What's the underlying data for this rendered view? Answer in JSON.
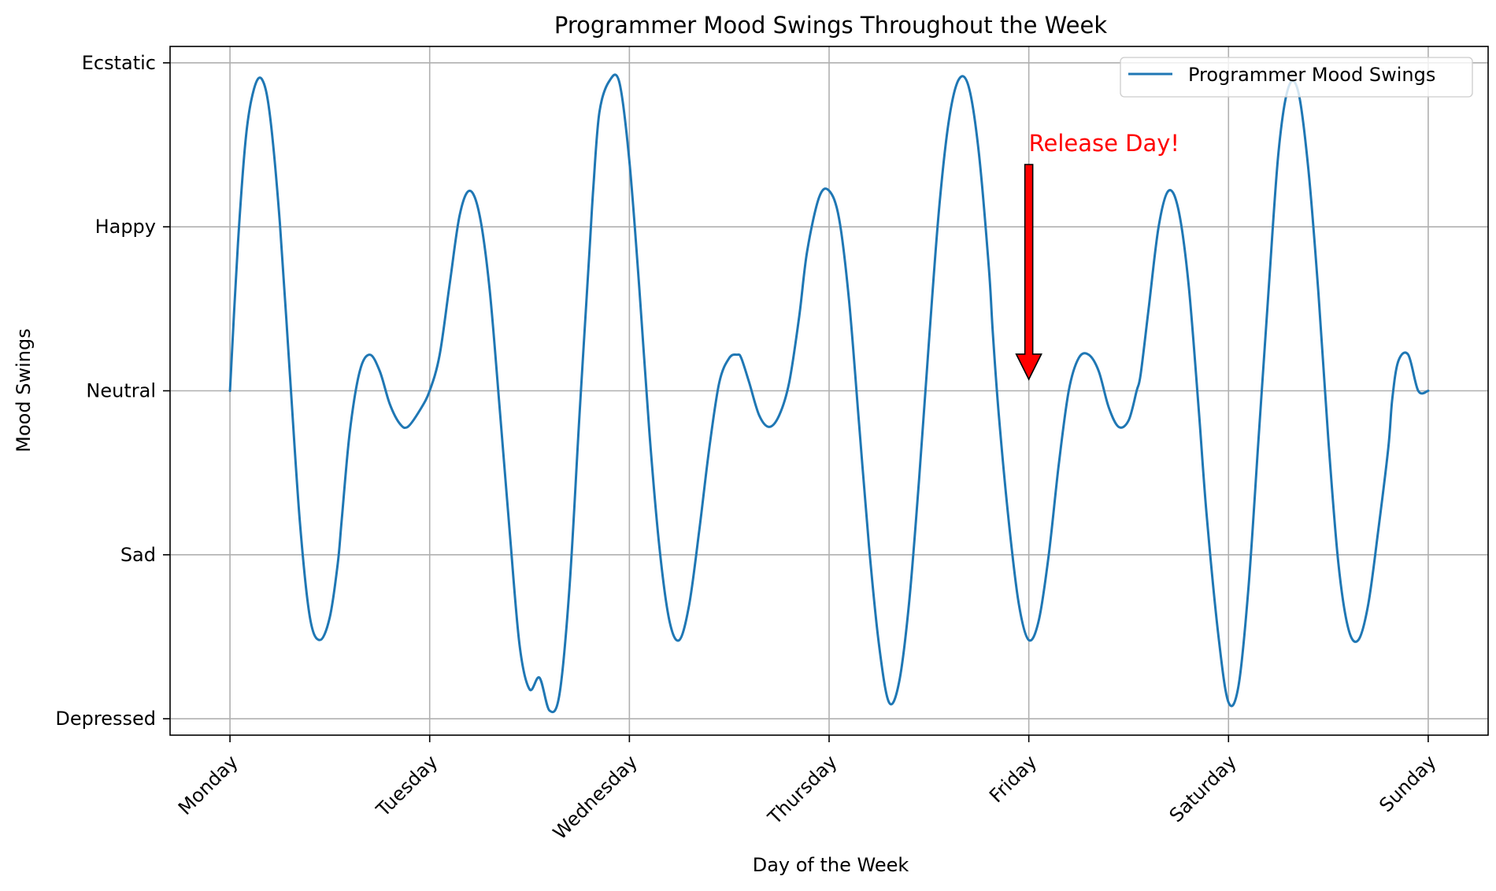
{
  "chart_data": {
    "type": "line",
    "title": "Programmer Mood Swings Throughout the Week",
    "xlabel": "Day of the Week",
    "ylabel": "Mood Swings",
    "x_tick_labels": [
      "Monday",
      "Tuesday",
      "Wednesday",
      "Thursday",
      "Friday",
      "Saturday",
      "Sunday"
    ],
    "x_ticks": [
      0,
      1,
      2,
      3,
      4,
      5,
      6
    ],
    "y_tick_labels": [
      "Depressed",
      "Sad",
      "Neutral",
      "Happy",
      "Ecstatic"
    ],
    "y_ticks": [
      -2,
      -1,
      0,
      1,
      2
    ],
    "xlim": [
      -0.3,
      6.3
    ],
    "ylim": [
      -2.1,
      2.1
    ],
    "grid": true,
    "legend_position": "top-right",
    "series": [
      {
        "name": "Programmer Mood Swings",
        "color": "#1f77b4",
        "x": [
          0,
          0.04,
          0.08,
          0.12,
          0.16,
          0.2,
          0.25,
          0.3,
          0.35,
          0.4,
          0.45,
          0.5,
          0.54,
          0.56,
          0.6,
          0.65,
          0.7,
          0.75,
          0.8,
          0.85,
          0.89,
          0.95,
          1.0,
          1.05,
          1.1,
          1.15,
          1.2,
          1.25,
          1.3,
          1.35,
          1.4,
          1.45,
          1.5,
          1.55,
          1.6,
          1.65,
          1.7,
          1.75,
          1.8,
          1.82,
          1.85,
          1.9,
          1.95,
          2.0,
          2.05,
          2.1,
          2.15,
          2.2,
          2.25,
          2.3,
          2.35,
          2.4,
          2.45,
          2.5,
          2.54,
          2.56,
          2.6,
          2.65,
          2.7,
          2.75,
          2.8,
          2.85,
          2.89,
          2.95,
          3.0,
          3.05,
          3.1,
          3.15,
          3.2,
          3.25,
          3.3,
          3.35,
          3.4,
          3.45,
          3.5,
          3.55,
          3.6,
          3.65,
          3.7,
          3.75,
          3.8,
          3.82,
          3.85,
          3.9,
          3.95,
          4.0,
          4.05,
          4.1,
          4.15,
          4.2,
          4.25,
          4.3,
          4.35,
          4.4,
          4.45,
          4.5,
          4.54,
          4.56,
          4.6,
          4.65,
          4.7,
          4.75,
          4.8,
          4.85,
          4.89,
          4.95,
          5.0,
          5.05,
          5.1,
          5.15,
          5.2,
          5.25,
          5.3,
          5.35,
          5.4,
          5.45,
          5.5,
          5.55,
          5.6,
          5.65,
          5.7,
          5.75,
          5.8,
          5.82,
          5.85,
          5.9,
          5.95,
          6.0
        ],
        "y": [
          0.0,
          0.9,
          1.55,
          1.84,
          1.9,
          1.68,
          1.02,
          0.1,
          -0.8,
          -1.38,
          -1.52,
          -1.38,
          -1.05,
          -0.78,
          -0.25,
          0.12,
          0.22,
          0.12,
          -0.08,
          -0.2,
          -0.22,
          -0.12,
          0.0,
          0.22,
          0.65,
          1.07,
          1.22,
          1.07,
          0.62,
          -0.1,
          -0.85,
          -1.55,
          -1.82,
          -1.75,
          -1.95,
          -1.85,
          -1.2,
          -0.15,
          0.85,
          1.25,
          1.7,
          1.89,
          1.88,
          1.4,
          0.62,
          -0.25,
          -0.95,
          -1.4,
          -1.52,
          -1.3,
          -0.85,
          -0.35,
          0.05,
          0.2,
          0.22,
          0.2,
          0.05,
          -0.15,
          -0.22,
          -0.15,
          0.05,
          0.45,
          0.85,
          1.18,
          1.22,
          1.05,
          0.55,
          -0.2,
          -0.95,
          -1.55,
          -1.9,
          -1.78,
          -1.3,
          -0.55,
          0.3,
          1.1,
          1.65,
          1.9,
          1.85,
          1.45,
          0.75,
          0.35,
          -0.15,
          -0.8,
          -1.3,
          -1.52,
          -1.4,
          -1.0,
          -0.45,
          0.0,
          0.2,
          0.22,
          0.12,
          -0.1,
          -0.22,
          -0.18,
          0.0,
          0.1,
          0.5,
          1.0,
          1.22,
          1.1,
          0.65,
          -0.1,
          -0.75,
          -1.5,
          -1.9,
          -1.8,
          -1.2,
          -0.3,
          0.6,
          1.45,
          1.85,
          1.82,
          1.35,
          0.6,
          -0.3,
          -1.05,
          -1.45,
          -1.52,
          -1.3,
          -0.85,
          -0.35,
          -0.05,
          0.18,
          0.22,
          0.0,
          0.0
        ],
        "linewidth": 2.5
      }
    ],
    "annotation": {
      "text": "Release Day!",
      "color": "#ff0000",
      "arrow_color": "#ff0000",
      "arrow_tip": {
        "x": 4.0,
        "y": 0.07
      },
      "arrow_tail": {
        "x": 4.0,
        "y": 1.38
      },
      "text_anchor": {
        "x": 4.0,
        "y": 1.5
      }
    }
  }
}
